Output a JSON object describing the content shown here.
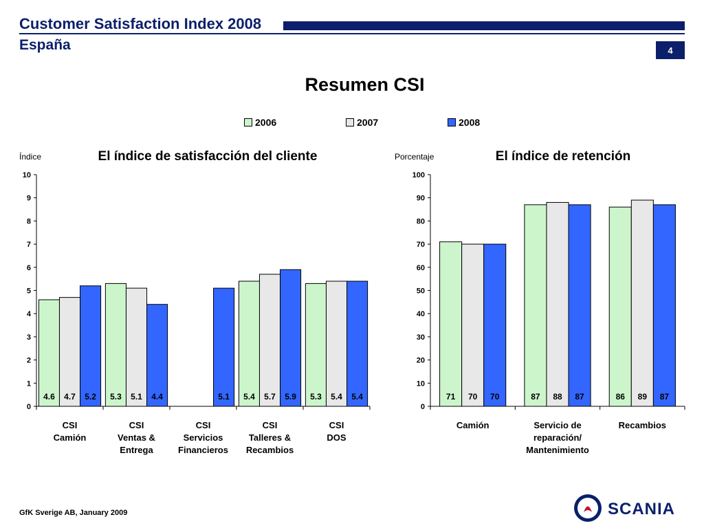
{
  "header": {
    "title": "Customer Satisfaction Index 2008",
    "subtitle": "España",
    "page_number": "4"
  },
  "main_title": "Resumen CSI",
  "legend": [
    {
      "label": "2006",
      "color": "#ccf5cc"
    },
    {
      "label": "2007",
      "color": "#e8e8e8"
    },
    {
      "label": "2008",
      "color": "#3366ff"
    }
  ],
  "footer": "GfK Sverige AB, January 2009",
  "logo": {
    "text": "SCANIA"
  },
  "chart_data": [
    {
      "type": "bar",
      "title": "El índice de satisfacción del cliente",
      "ylabel": "Índice",
      "ylim": [
        0,
        10
      ],
      "yticks": [
        "0",
        "1",
        "2",
        "3",
        "4",
        "5",
        "6",
        "7",
        "8",
        "9",
        "10"
      ],
      "categories": [
        [
          "CSI",
          "Camión"
        ],
        [
          "CSI",
          "Ventas &",
          "Entrega"
        ],
        [
          "CSI",
          "Servicios",
          "Financieros"
        ],
        [
          "CSI",
          "Talleres &",
          "Recambios"
        ],
        [
          "CSI",
          "DOS"
        ]
      ],
      "series": [
        {
          "name": "2006",
          "values": [
            4.6,
            5.3,
            null,
            5.4,
            5.3
          ],
          "labels": [
            "4.6",
            "5.3",
            "",
            "5.4",
            "5.3"
          ]
        },
        {
          "name": "2007",
          "values": [
            4.7,
            5.1,
            null,
            5.7,
            5.4
          ],
          "labels": [
            "4.7",
            "5.1",
            "",
            "5.7",
            "5.4"
          ]
        },
        {
          "name": "2008",
          "values": [
            5.2,
            4.4,
            5.1,
            5.9,
            5.4
          ],
          "labels": [
            "5.2",
            "4.4",
            "5.1",
            "5.9",
            "5.4"
          ]
        }
      ],
      "grid": false,
      "legend": "top"
    },
    {
      "type": "bar",
      "title": "El índice de retención",
      "ylabel": "Porcentaje",
      "ylim": [
        0,
        100
      ],
      "yticks": [
        "0",
        "10",
        "20",
        "30",
        "40",
        "50",
        "60",
        "70",
        "80",
        "90",
        "100"
      ],
      "categories": [
        [
          "Camión"
        ],
        [
          "Servicio de",
          "reparación/",
          "Mantenimiento"
        ],
        [
          "Recambios"
        ]
      ],
      "series": [
        {
          "name": "2006",
          "values": [
            71,
            87,
            86
          ],
          "labels": [
            "71",
            "87",
            "86"
          ]
        },
        {
          "name": "2007",
          "values": [
            70,
            88,
            89
          ],
          "labels": [
            "70",
            "88",
            "89"
          ]
        },
        {
          "name": "2008",
          "values": [
            70,
            87,
            87
          ],
          "labels": [
            "70",
            "87",
            "87"
          ]
        }
      ],
      "grid": false,
      "legend": "top"
    }
  ]
}
